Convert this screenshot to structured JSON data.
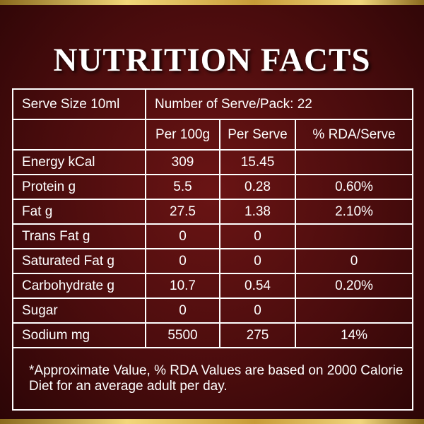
{
  "title": "NUTRITION FACTS",
  "colors": {
    "background": "#4a0c0d",
    "gold_frame": "#d9b856",
    "text": "#ffffff"
  },
  "serve_size": "Serve Size 10ml",
  "serves_per_pack": "Number of Serve/Pack: 22",
  "columns": {
    "per_100g": "Per 100g",
    "per_serve": "Per Serve",
    "rda": "% RDA/Serve"
  },
  "rows": [
    {
      "nutrient": "Energy kCal",
      "per_100g": "309",
      "per_serve": "15.45",
      "rda": ""
    },
    {
      "nutrient": "Protein g",
      "per_100g": "5.5",
      "per_serve": "0.28",
      "rda": "0.60%"
    },
    {
      "nutrient": "Fat g",
      "per_100g": "27.5",
      "per_serve": "1.38",
      "rda": "2.10%"
    },
    {
      "nutrient": "Trans Fat g",
      "per_100g": "0",
      "per_serve": "0",
      "rda": ""
    },
    {
      "nutrient": "Saturated Fat g",
      "per_100g": "0",
      "per_serve": "0",
      "rda": "0"
    },
    {
      "nutrient": "Carbohydrate g",
      "per_100g": "10.7",
      "per_serve": "0.54",
      "rda": "0.20%"
    },
    {
      "nutrient": "Sugar",
      "per_100g": "0",
      "per_serve": "0",
      "rda": ""
    },
    {
      "nutrient": "Sodium mg",
      "per_100g": "5500",
      "per_serve": "275",
      "rda": "14%"
    }
  ],
  "footnote": "*Approximate Value, % RDA Values are based on 2000 Calorie Diet for an average adult per day."
}
